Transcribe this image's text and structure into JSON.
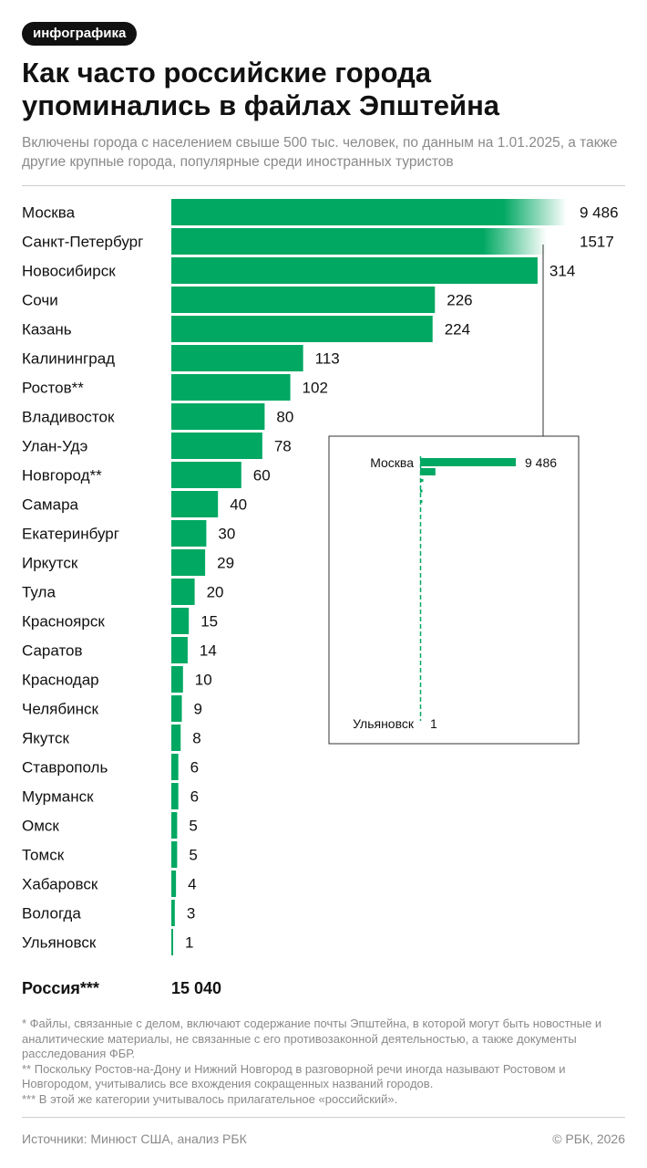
{
  "header": {
    "tag": "инфографика",
    "title": "Как часто российские города упоминались в файлах Эпштейна",
    "subtitle": "Включены города с населением свыше 500 тыс. человек, по данным на 1.01.2025, а также другие крупные города, популярные среди иностранных туристов"
  },
  "colors": {
    "bar": "#00a862",
    "text": "#111111",
    "muted": "#8a8a8a",
    "tag_bg": "#111111"
  },
  "chart_data": {
    "type": "bar",
    "orientation": "horizontal",
    "scale": "truncated; the two largest bars are shown cut off with a fade",
    "categories": [
      "Москва",
      "Санкт-Петербург",
      "Новосибирск",
      "Сочи",
      "Казань",
      "Калининград",
      "Ростов**",
      "Владивосток",
      "Улан-Удэ",
      "Новгород**",
      "Самара",
      "Екатеринбург",
      "Иркутск",
      "Тула",
      "Красноярск",
      "Саратов",
      "Краснодар",
      "Челябинск",
      "Якутск",
      "Ставрополь",
      "Мурманск",
      "Омск",
      "Томск",
      "Хабаровск",
      "Вологда",
      "Ульяновск"
    ],
    "values": [
      9486,
      1517,
      314,
      226,
      224,
      113,
      102,
      80,
      78,
      60,
      40,
      30,
      29,
      20,
      15,
      14,
      10,
      9,
      8,
      6,
      6,
      5,
      5,
      4,
      3,
      1
    ],
    "value_labels": [
      "9 486",
      "1517",
      "314",
      "226",
      "224",
      "113",
      "102",
      "80",
      "78",
      "60",
      "40",
      "30",
      "29",
      "20",
      "15",
      "14",
      "10",
      "9",
      "8",
      "6",
      "6",
      "5",
      "5",
      "4",
      "3",
      "1"
    ],
    "inset": {
      "description": "full-scale inset",
      "top_label": "Москва",
      "top_value": "9 486",
      "bottom_label": "Ульяновск",
      "bottom_value": "1"
    }
  },
  "total": {
    "label": "Россия***",
    "value": "15 040"
  },
  "footnotes": [
    "* Файлы, связанные с делом, включают содержание почты Эпштейна, в которой могут быть новостные и аналитические материалы, не связанные с его противозаконной деятельностью, а также документы расследования ФБР.",
    "** Поскольку Ростов-на-Дону и Нижний Новгород в разговорной речи иногда называют Ростовом и Новгородом, учитывались все вхождения сокращенных названий городов.",
    "*** В этой же категории учитывалось прилагательное «российский»."
  ],
  "footer": {
    "source": "Источники: Минюст США, анализ РБК",
    "copyright": "© РБК, 2026"
  }
}
